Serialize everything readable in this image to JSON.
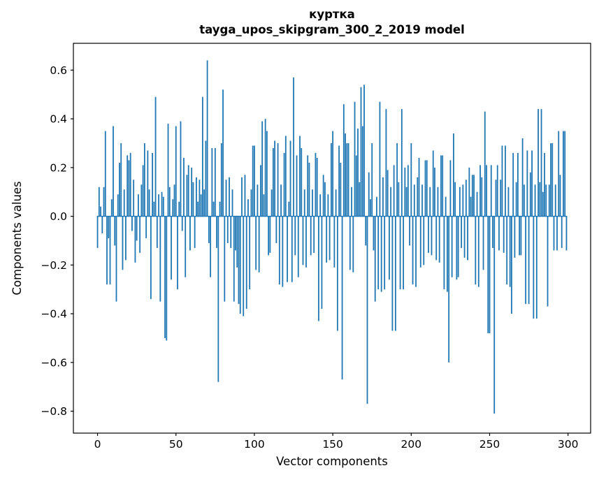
{
  "figure": {
    "title_line1": "куртка",
    "title_line2": "tayga_upos_skipgram_300_2_2019 model",
    "xlabel": "Vector components",
    "ylabel": "Components values"
  },
  "chart_data": {
    "type": "bar",
    "title": "куртка — tayga_upos_skipgram_300_2_2019 model",
    "xlabel": "Vector components",
    "ylabel": "Components values",
    "bar_color": "#1f77b4",
    "grid": false,
    "legend": false,
    "xlim": [
      -15.4,
      314.4
    ],
    "ylim": [
      -0.89,
      0.71
    ],
    "x_ticks": [
      0,
      50,
      100,
      150,
      200,
      250,
      300
    ],
    "y_ticks": [
      0.6,
      0.4,
      0.2,
      0.0,
      -0.2,
      -0.4,
      -0.6,
      -0.8
    ],
    "bar_width": 0.8,
    "categories_note": "x = vector component index 0..299",
    "values": [
      -0.13,
      0.12,
      0.04,
      -0.07,
      0.12,
      0.35,
      -0.28,
      -0.09,
      -0.28,
      0.07,
      0.37,
      -0.12,
      -0.35,
      0.09,
      0.22,
      0.3,
      -0.22,
      0.11,
      -0.18,
      0.25,
      0.23,
      0.26,
      -0.06,
      0.15,
      -0.19,
      -0.1,
      0.09,
      -0.15,
      0.13,
      0.21,
      0.3,
      -0.09,
      0.27,
      0.11,
      -0.34,
      0.26,
      0.06,
      0.49,
      -0.13,
      0.09,
      -0.35,
      0.1,
      0.08,
      -0.5,
      -0.51,
      0.38,
      0.12,
      -0.26,
      0.07,
      0.13,
      0.37,
      -0.3,
      0.06,
      0.39,
      -0.06,
      0.24,
      -0.25,
      0.17,
      0.21,
      -0.14,
      0.2,
      0.14,
      -0.13,
      0.16,
      0.06,
      0.15,
      0.09,
      0.49,
      0.11,
      0.31,
      0.64,
      -0.11,
      -0.25,
      0.28,
      0.06,
      0.28,
      -0.13,
      -0.68,
      0.06,
      0.3,
      0.52,
      -0.35,
      0.15,
      -0.11,
      0.16,
      -0.13,
      0.11,
      -0.35,
      -0.14,
      -0.21,
      -0.36,
      -0.4,
      0.16,
      -0.41,
      0.17,
      -0.38,
      0.07,
      -0.3,
      0.11,
      0.29,
      0.29,
      -0.22,
      0.13,
      -0.23,
      0.21,
      0.39,
      0.09,
      0.4,
      0.35,
      -0.16,
      -0.15,
      0.11,
      0.28,
      0.31,
      -0.11,
      0.3,
      -0.28,
      0.13,
      -0.29,
      0.26,
      0.33,
      -0.27,
      0.06,
      0.31,
      -0.27,
      0.57,
      -0.16,
      0.25,
      -0.25,
      0.33,
      0.28,
      -0.2,
      0.11,
      -0.21,
      0.25,
      0.22,
      -0.16,
      0.11,
      -0.15,
      0.26,
      0.24,
      -0.43,
      0.09,
      -0.38,
      0.17,
      0.14,
      -0.19,
      0.09,
      -0.18,
      0.3,
      0.35,
      -0.21,
      0.11,
      -0.47,
      0.29,
      0.22,
      -0.67,
      0.46,
      0.34,
      0.3,
      0.3,
      -0.22,
      0.12,
      -0.23,
      0.47,
      0.25,
      0.36,
      0.14,
      0.53,
      0.37,
      0.54,
      -0.12,
      -0.77,
      0.18,
      0.07,
      0.3,
      -0.14,
      -0.35,
      0.08,
      -0.3,
      0.47,
      -0.31,
      0.16,
      -0.3,
      0.44,
      0.19,
      -0.26,
      0.12,
      -0.47,
      0.21,
      -0.47,
      0.3,
      0.14,
      -0.3,
      0.44,
      -0.3,
      0.2,
      0.12,
      0.21,
      -0.12,
      0.3,
      -0.28,
      0.13,
      -0.29,
      0.16,
      0.24,
      -0.21,
      0.13,
      -0.2,
      0.23,
      0.23,
      -0.15,
      0.12,
      -0.16,
      0.27,
      0.2,
      -0.18,
      0.12,
      -0.19,
      0.25,
      0.25,
      -0.3,
      0.08,
      -0.31,
      -0.6,
      0.23,
      -0.25,
      0.34,
      0.14,
      -0.26,
      -0.25,
      0.12,
      -0.13,
      0.13,
      -0.17,
      0.15,
      -0.18,
      0.2,
      0.08,
      0.17,
      0.17,
      -0.28,
      0.1,
      -0.29,
      0.21,
      0.16,
      -0.22,
      0.43,
      0.21,
      -0.48,
      -0.48,
      0.21,
      -0.13,
      -0.81,
      0.15,
      0.21,
      -0.14,
      0.15,
      0.29,
      -0.15,
      0.29,
      -0.28,
      0.12,
      -0.29,
      -0.4,
      0.26,
      -0.17,
      0.14,
      0.26,
      -0.16,
      -0.16,
      0.32,
      0.13,
      -0.36,
      0.27,
      -0.36,
      0.18,
      0.27,
      -0.42,
      0.13,
      -0.42,
      0.44,
      0.14,
      0.44,
      0.1,
      0.26,
      0.13,
      -0.37,
      0.13,
      0.3,
      0.3,
      -0.14,
      0.13,
      -0.14,
      0.35,
      0.17,
      -0.13,
      0.35,
      0.35,
      -0.14
    ]
  }
}
